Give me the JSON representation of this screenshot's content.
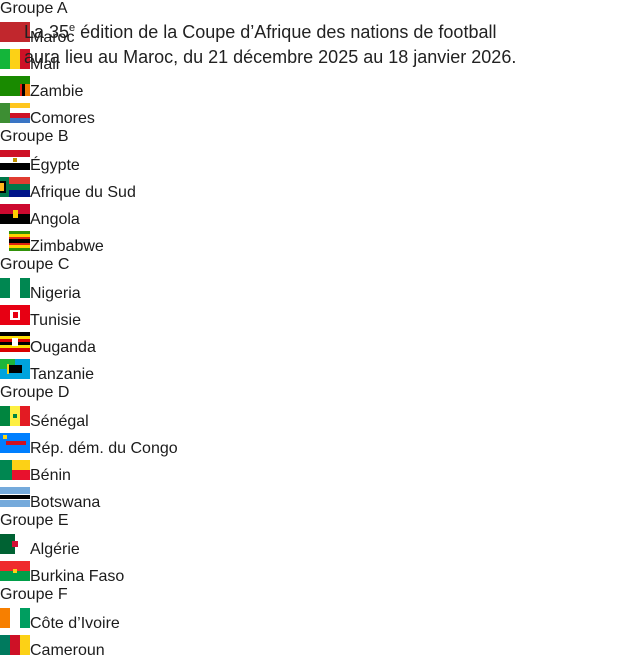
{
  "intro": [
    [
      "La 35",
      "e",
      " édition de la Coupe d’Afrique des nations de football"
    ],
    [
      "aura lieu au Maroc, du 21 décembre 2025 au 18 janvier 2026."
    ]
  ],
  "groups": [
    {
      "name": "Groupe A",
      "teams": [
        "Maroc",
        "Mali",
        "Zambie",
        "Comores"
      ]
    },
    {
      "name": "Groupe B",
      "teams": [
        "Égypte",
        "Afrique du Sud",
        "Angola",
        "Zimbabwe"
      ]
    },
    {
      "name": "Groupe C",
      "teams": [
        "Nigeria",
        "Tunisie",
        "Ouganda",
        "Tanzanie"
      ]
    },
    {
      "name": "Groupe D",
      "teams": [
        "Sénégal",
        "Rép. dém. du Congo",
        "Bénin",
        "Botswana"
      ]
    },
    {
      "name": "Groupe E",
      "teams": [
        "Algérie",
        "Burkina Faso"
      ]
    },
    {
      "name": "Groupe F",
      "teams": [
        "Côte d’Ivoire",
        "Cameroun"
      ]
    }
  ]
}
